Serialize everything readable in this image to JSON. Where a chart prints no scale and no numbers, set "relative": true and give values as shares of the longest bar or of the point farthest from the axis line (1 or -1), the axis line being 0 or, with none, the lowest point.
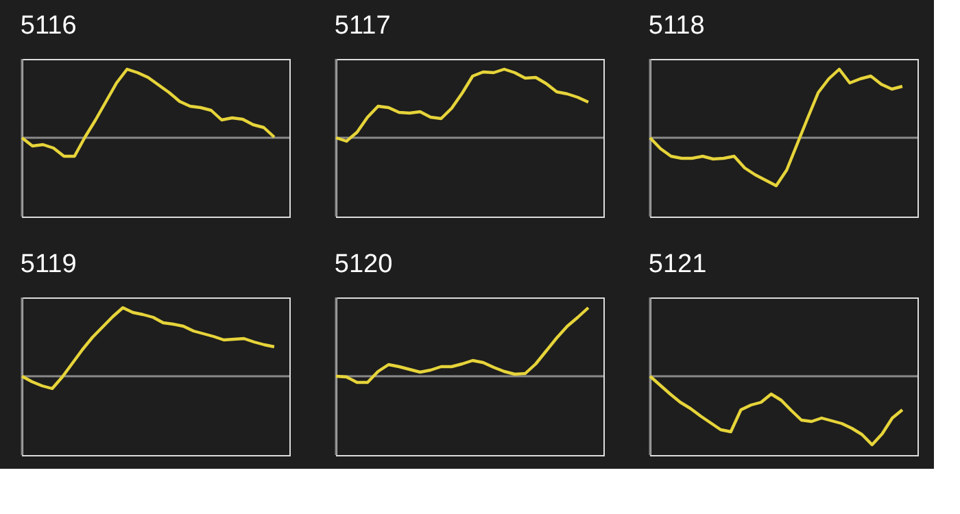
{
  "chart_data": [
    {
      "type": "line",
      "title": "5116",
      "relative": true,
      "categories": [
        null,
        null,
        null,
        null,
        null,
        null,
        null,
        null,
        null,
        null,
        null,
        null,
        null,
        null,
        null,
        null,
        null,
        null,
        null,
        null,
        null,
        null,
        null,
        null,
        null
      ],
      "series": [
        {
          "color": "#e6d43a",
          "values": [
            0,
            -0.12,
            -0.1,
            -0.15,
            -0.27,
            -0.27,
            0.01,
            0.26,
            0.53,
            0.8,
            1.0,
            0.95,
            0.88,
            0.77,
            0.66,
            0.53,
            0.46,
            0.44,
            0.4,
            0.26,
            0.29,
            0.27,
            0.19,
            0.15,
            0.01
          ]
        }
      ]
    },
    {
      "type": "line",
      "title": "5117",
      "relative": true,
      "categories": [
        null,
        null,
        null,
        null,
        null,
        null,
        null,
        null,
        null,
        null,
        null,
        null,
        null,
        null,
        null,
        null,
        null,
        null,
        null,
        null,
        null,
        null,
        null,
        null,
        null
      ],
      "series": [
        {
          "color": "#e6d43a",
          "values": [
            0,
            -0.05,
            0.08,
            0.3,
            0.46,
            0.44,
            0.37,
            0.36,
            0.38,
            0.3,
            0.28,
            0.43,
            0.65,
            0.9,
            0.96,
            0.95,
            1.0,
            0.95,
            0.87,
            0.88,
            0.79,
            0.67,
            0.64,
            0.59,
            0.52
          ]
        }
      ]
    },
    {
      "type": "line",
      "title": "5118",
      "relative": true,
      "categories": [
        null,
        null,
        null,
        null,
        null,
        null,
        null,
        null,
        null,
        null,
        null,
        null,
        null,
        null,
        null,
        null,
        null,
        null,
        null,
        null,
        null,
        null,
        null,
        null,
        null
      ],
      "series": [
        {
          "color": "#e6d43a",
          "values": [
            0,
            -0.16,
            -0.27,
            -0.3,
            -0.3,
            -0.27,
            -0.31,
            -0.3,
            -0.27,
            -0.44,
            -0.54,
            -0.62,
            -0.7,
            -0.47,
            -0.09,
            0.29,
            0.66,
            0.86,
            1.0,
            0.8,
            0.86,
            0.9,
            0.78,
            0.71,
            0.75
          ]
        }
      ]
    },
    {
      "type": "line",
      "title": "5119",
      "relative": true,
      "categories": [
        null,
        null,
        null,
        null,
        null,
        null,
        null,
        null,
        null,
        null,
        null,
        null,
        null,
        null,
        null,
        null,
        null,
        null,
        null,
        null,
        null,
        null,
        null,
        null,
        null,
        null
      ],
      "series": [
        {
          "color": "#e6d43a",
          "values": [
            0,
            -0.08,
            -0.14,
            -0.18,
            -0.01,
            0.19,
            0.39,
            0.57,
            0.72,
            0.87,
            1.0,
            0.93,
            0.9,
            0.86,
            0.78,
            0.76,
            0.73,
            0.66,
            0.62,
            0.58,
            0.53,
            0.54,
            0.55,
            0.5,
            0.46,
            0.43
          ]
        }
      ]
    },
    {
      "type": "line",
      "title": "5120",
      "relative": true,
      "categories": [
        null,
        null,
        null,
        null,
        null,
        null,
        null,
        null,
        null,
        null,
        null,
        null,
        null,
        null,
        null,
        null,
        null,
        null,
        null,
        null,
        null,
        null,
        null,
        null,
        null
      ],
      "series": [
        {
          "color": "#e6d43a",
          "values": [
            0,
            -0.01,
            -0.09,
            -0.09,
            0.07,
            0.17,
            0.14,
            0.1,
            0.06,
            0.09,
            0.14,
            0.14,
            0.18,
            0.23,
            0.2,
            0.13,
            0.07,
            0.03,
            0.04,
            0.18,
            0.37,
            0.56,
            0.73,
            0.86,
            1.0
          ]
        }
      ]
    },
    {
      "type": "line",
      "title": "5121",
      "relative": true,
      "categories": [
        null,
        null,
        null,
        null,
        null,
        null,
        null,
        null,
        null,
        null,
        null,
        null,
        null,
        null,
        null,
        null,
        null,
        null,
        null,
        null,
        null,
        null,
        null,
        null,
        null,
        null
      ],
      "series": [
        {
          "color": "#e6d43a",
          "values": [
            0,
            -0.13,
            -0.26,
            -0.38,
            -0.47,
            -0.58,
            -0.68,
            -0.78,
            -0.81,
            -0.49,
            -0.42,
            -0.38,
            -0.26,
            -0.35,
            -0.5,
            -0.64,
            -0.66,
            -0.61,
            -0.65,
            -0.69,
            -0.76,
            -0.85,
            -1.0,
            -0.84,
            -0.61,
            -0.49
          ]
        }
      ]
    }
  ]
}
